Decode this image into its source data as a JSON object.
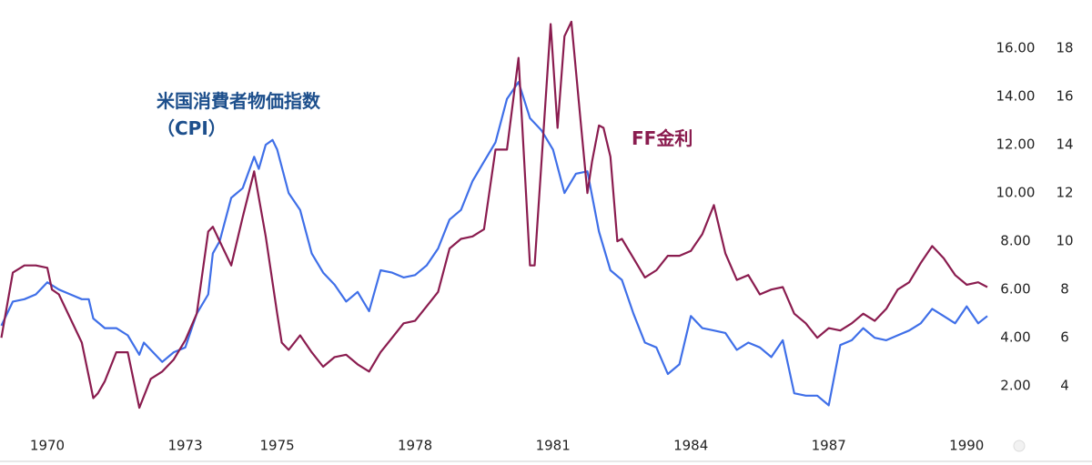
{
  "chart_data": {
    "type": "line",
    "xlim": [
      1968.97,
      1990.45
    ],
    "xticks": [
      1970,
      1973,
      1975,
      1978,
      1981,
      1984,
      1987,
      1990
    ],
    "ylim": [
      0.5,
      18
    ],
    "yticks": [
      {
        "value": 2,
        "label": "2.00"
      },
      {
        "value": 4,
        "label": "4.00"
      },
      {
        "value": 6,
        "label": "6.00"
      },
      {
        "value": 8,
        "label": "8.00"
      },
      {
        "value": 10,
        "label": "10.00"
      },
      {
        "value": 12,
        "label": "12.00"
      },
      {
        "value": 14,
        "label": "14.00"
      },
      {
        "value": 16,
        "label": "16.00"
      }
    ],
    "y2lim": [
      2.5,
      20
    ],
    "y2ticks": [
      4,
      6,
      8,
      10,
      12,
      14,
      16,
      18
    ],
    "series": [
      {
        "name": "米国消費者物価指数（CPI）",
        "color": "#3f6fe8",
        "x": [
          1969.0,
          1969.25,
          1969.5,
          1969.75,
          1970.0,
          1970.25,
          1970.5,
          1970.75,
          1970.9,
          1971.0,
          1971.25,
          1971.5,
          1971.75,
          1972.0,
          1972.1,
          1972.25,
          1972.5,
          1972.75,
          1973.0,
          1973.25,
          1973.5,
          1973.6,
          1973.75,
          1974.0,
          1974.25,
          1974.5,
          1974.6,
          1974.75,
          1974.9,
          1975.0,
          1975.25,
          1975.5,
          1975.75,
          1976.0,
          1976.25,
          1976.5,
          1976.75,
          1977.0,
          1977.25,
          1977.5,
          1977.75,
          1978.0,
          1978.25,
          1978.5,
          1978.75,
          1979.0,
          1979.25,
          1979.5,
          1979.75,
          1980.0,
          1980.25,
          1980.5,
          1980.75,
          1981.0,
          1981.25,
          1981.5,
          1981.75,
          1982.0,
          1982.25,
          1982.5,
          1982.75,
          1983.0,
          1983.25,
          1983.5,
          1983.75,
          1984.0,
          1984.25,
          1984.5,
          1984.75,
          1985.0,
          1985.25,
          1985.5,
          1985.75,
          1986.0,
          1986.25,
          1986.5,
          1986.75,
          1987.0,
          1987.25,
          1987.5,
          1987.75,
          1988.0,
          1988.25,
          1988.5,
          1988.75,
          1989.0,
          1989.25,
          1989.5,
          1989.75,
          1990.0,
          1990.25,
          1990.45
        ],
        "values": [
          4.5,
          5.5,
          5.6,
          5.8,
          6.3,
          6.0,
          5.8,
          5.6,
          5.6,
          4.8,
          4.4,
          4.4,
          4.1,
          3.3,
          3.8,
          3.5,
          3.0,
          3.4,
          3.6,
          5.0,
          5.8,
          7.5,
          8.0,
          9.8,
          10.2,
          11.5,
          11.0,
          12.0,
          12.2,
          11.8,
          10.0,
          9.3,
          7.5,
          6.7,
          6.2,
          5.5,
          5.9,
          5.1,
          6.8,
          6.7,
          6.5,
          6.6,
          7.0,
          7.7,
          8.9,
          9.3,
          10.5,
          11.3,
          12.1,
          13.9,
          14.6,
          13.1,
          12.6,
          11.8,
          10.0,
          10.8,
          10.9,
          8.4,
          6.8,
          6.4,
          5.0,
          3.8,
          3.6,
          2.5,
          2.9,
          4.9,
          4.4,
          4.3,
          4.2,
          3.5,
          3.8,
          3.6,
          3.2,
          3.9,
          1.7,
          1.6,
          1.6,
          1.2,
          3.7,
          3.9,
          4.4,
          4.0,
          3.9,
          4.1,
          4.3,
          4.6,
          5.2,
          4.9,
          4.6,
          5.3,
          4.6,
          4.9
        ]
      },
      {
        "name": "FF金利",
        "color": "#8a1c4f",
        "axis": "y2",
        "x": [
          1969.0,
          1969.25,
          1969.5,
          1969.75,
          1970.0,
          1970.1,
          1970.25,
          1970.5,
          1970.75,
          1971.0,
          1971.1,
          1971.25,
          1971.5,
          1971.75,
          1972.0,
          1972.25,
          1972.5,
          1972.75,
          1973.0,
          1973.25,
          1973.5,
          1973.6,
          1973.75,
          1974.0,
          1974.25,
          1974.5,
          1974.75,
          1975.0,
          1975.1,
          1975.25,
          1975.5,
          1975.75,
          1976.0,
          1976.25,
          1976.5,
          1976.75,
          1977.0,
          1977.25,
          1977.5,
          1977.75,
          1978.0,
          1978.25,
          1978.5,
          1978.75,
          1979.0,
          1979.25,
          1979.5,
          1979.75,
          1980.0,
          1980.25,
          1980.5,
          1980.6,
          1980.95,
          1981.1,
          1981.25,
          1981.4,
          1981.6,
          1981.75,
          1981.85,
          1982.0,
          1982.1,
          1982.25,
          1982.4,
          1982.5,
          1982.75,
          1983.0,
          1983.25,
          1983.5,
          1983.75,
          1984.0,
          1984.25,
          1984.5,
          1984.75,
          1985.0,
          1985.25,
          1985.5,
          1985.75,
          1986.0,
          1986.25,
          1986.5,
          1986.75,
          1987.0,
          1987.25,
          1987.5,
          1987.75,
          1988.0,
          1988.25,
          1988.5,
          1988.75,
          1989.0,
          1989.25,
          1989.5,
          1989.75,
          1990.0,
          1990.25,
          1990.45
        ],
        "values": [
          6.0,
          8.7,
          9.0,
          9.0,
          8.9,
          8.0,
          7.8,
          6.8,
          5.8,
          3.5,
          3.7,
          4.2,
          5.4,
          5.4,
          3.1,
          4.3,
          4.6,
          5.1,
          5.9,
          7.0,
          10.4,
          10.6,
          10.0,
          9.0,
          11.0,
          12.9,
          10.2,
          7.0,
          5.8,
          5.5,
          6.1,
          5.4,
          4.8,
          5.2,
          5.3,
          4.9,
          4.6,
          5.4,
          6.0,
          6.6,
          6.7,
          7.3,
          7.9,
          9.7,
          10.1,
          10.2,
          10.5,
          13.8,
          13.8,
          17.6,
          9.0,
          9.0,
          19.0,
          14.7,
          18.5,
          19.1,
          15.0,
          12.0,
          13.3,
          14.8,
          14.7,
          13.5,
          10.0,
          10.1,
          9.3,
          8.5,
          8.8,
          9.4,
          9.4,
          9.6,
          10.3,
          11.5,
          9.5,
          8.4,
          8.6,
          7.8,
          8.0,
          8.1,
          7.0,
          6.6,
          6.0,
          6.4,
          6.3,
          6.6,
          7.0,
          6.7,
          7.2,
          8.0,
          8.3,
          9.1,
          9.8,
          9.3,
          8.6,
          8.2,
          8.3,
          8.1
        ]
      }
    ]
  }
}
